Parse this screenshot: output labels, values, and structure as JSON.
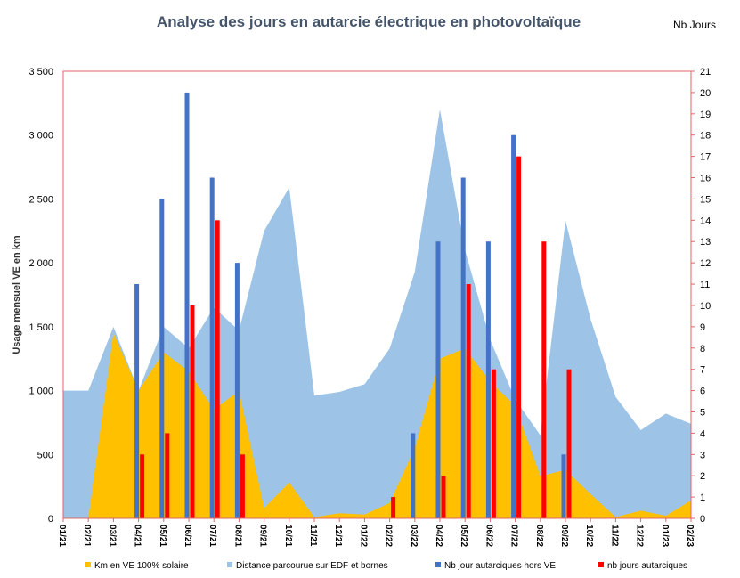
{
  "chart_data": {
    "type": "area",
    "title": "Analyse des jours en autarcie électrique en photovoltaïque",
    "ylabel": "Usage mensuel VE en km",
    "y2label": "Nb Jours",
    "ylim": [
      0,
      3500
    ],
    "y2lim": [
      0,
      21
    ],
    "yticks": [
      "0",
      "500",
      "1 000",
      "1 500",
      "2 000",
      "2 500",
      "3 000",
      "3 500"
    ],
    "y2ticks": [
      "0",
      "1",
      "2",
      "3",
      "4",
      "5",
      "6",
      "7",
      "8",
      "9",
      "10",
      "11",
      "12",
      "13",
      "14",
      "15",
      "16",
      "17",
      "18",
      "19",
      "20",
      "21"
    ],
    "categories": [
      "01/21",
      "02/21",
      "03/21",
      "04/21",
      "05/21",
      "06/21",
      "07/21",
      "08/21",
      "09/21",
      "10/21",
      "11/21",
      "12/21",
      "01/22",
      "02/22",
      "03/22",
      "04/22",
      "05/22",
      "06/22",
      "07/22",
      "08/22",
      "09/22",
      "10/22",
      "11/22",
      "12/22",
      "01/23",
      "02/23"
    ],
    "series": [
      {
        "name": "Km en VE 100% solaire",
        "kind": "area",
        "axis": "left",
        "color": "#ffc000",
        "values": [
          0,
          0,
          1450,
          1000,
          1300,
          1150,
          850,
          1000,
          80,
          280,
          10,
          40,
          30,
          120,
          550,
          1250,
          1330,
          1070,
          880,
          330,
          380,
          190,
          10,
          60,
          20,
          140
        ]
      },
      {
        "name": "Distance parcourue sur EDF et bornes",
        "kind": "area",
        "axis": "left",
        "color": "#9dc3e6",
        "values": [
          1000,
          1000,
          1500,
          1000,
          1500,
          1330,
          1650,
          1470,
          2250,
          2590,
          960,
          990,
          1050,
          1330,
          1930,
          3200,
          2100,
          1400,
          930,
          650,
          2330,
          1560,
          950,
          690,
          820,
          740
        ]
      },
      {
        "name": "Nb jour autarciques hors VE",
        "kind": "bar",
        "axis": "right",
        "color": "#4472c4",
        "values": [
          0,
          0,
          0,
          11,
          15,
          20,
          16,
          12,
          0,
          0,
          0,
          0,
          0,
          0,
          4,
          13,
          16,
          13,
          18,
          0,
          3,
          0,
          0,
          0,
          0,
          0
        ]
      },
      {
        "name": "nb jours autarciques",
        "kind": "bar",
        "axis": "right",
        "color": "#ff0000",
        "values": [
          0,
          0,
          0,
          3,
          4,
          10,
          14,
          3,
          0,
          0,
          0,
          0,
          0,
          1,
          0,
          2,
          11,
          7,
          17,
          13,
          7,
          0,
          0,
          0,
          0,
          0
        ]
      }
    ],
    "legend_position": "bottom",
    "grid": false
  }
}
